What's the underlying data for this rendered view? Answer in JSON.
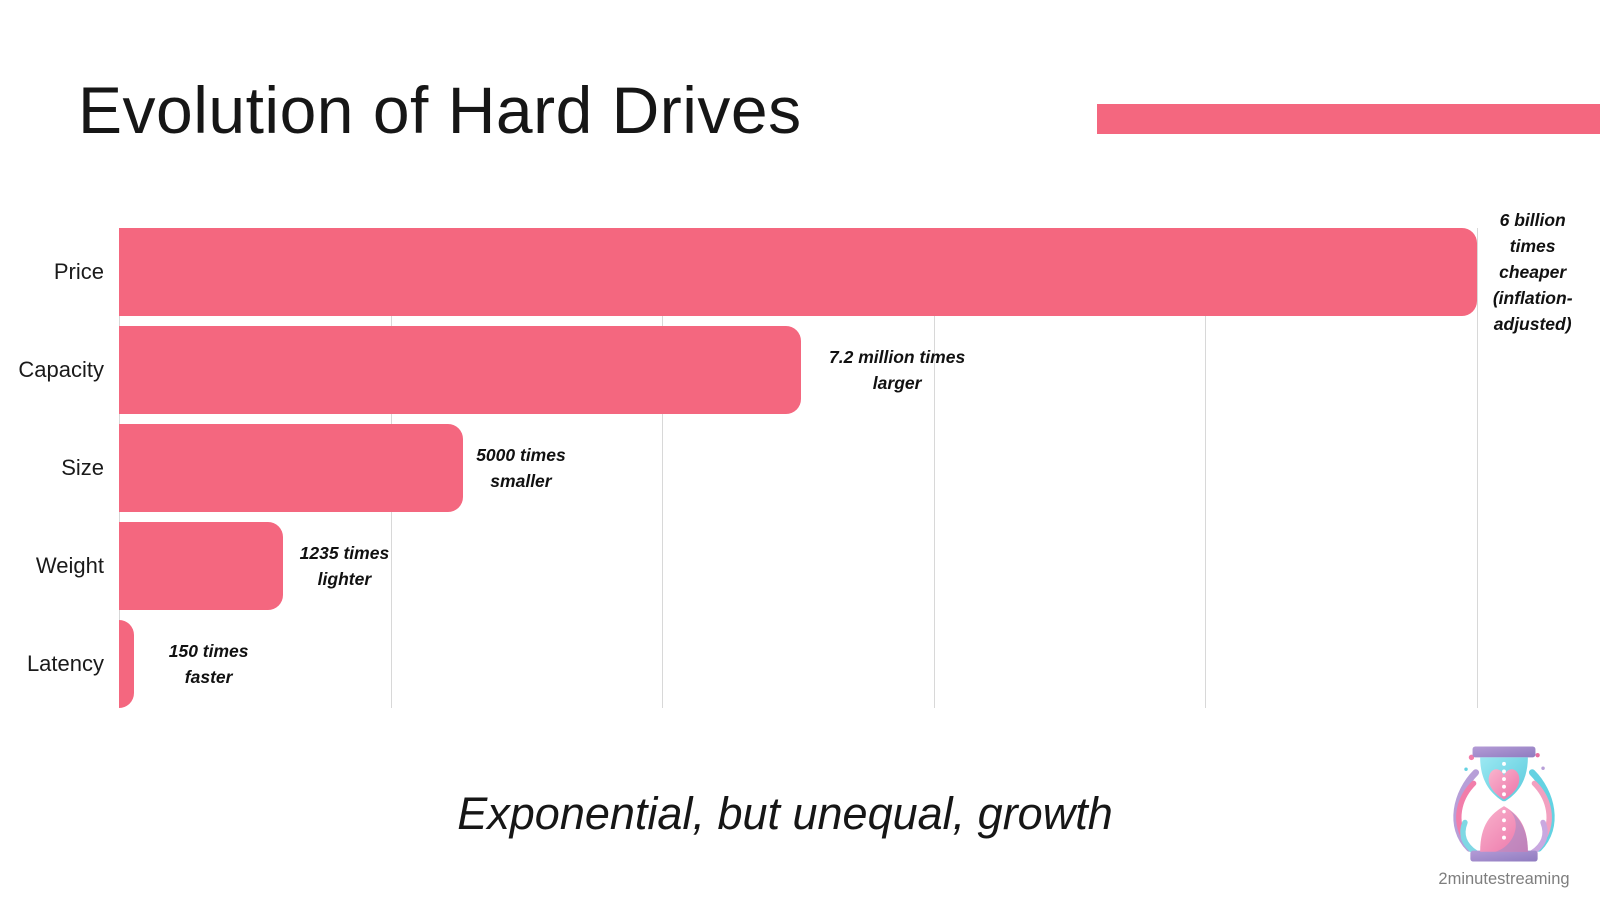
{
  "page": {
    "title": "Evolution of Hard Drives",
    "footer_caption": "Exponential, but unequal, growth",
    "brand_name": "2minutestreaming",
    "accent_color": "#F4677F",
    "background": "#ffffff"
  },
  "chart_data": {
    "type": "bar",
    "orientation": "horizontal",
    "title": "Evolution of Hard Drives",
    "subtitle": "Exponential, but unequal, growth",
    "bar_color": "#F4677F",
    "gridline_color": "#D8D8D8",
    "grid": true,
    "legend": "none",
    "axis": {
      "min_pct": 0,
      "max_pct": 100,
      "gridline_step_pct": 20,
      "tick_labels_visible": false
    },
    "categories": [
      "Price",
      "Capacity",
      "Size",
      "Weight",
      "Latency"
    ],
    "values_pct_of_axis": [
      100,
      50.2,
      25.3,
      12.1,
      1.1
    ],
    "annotations_full": [
      "6 billion times cheaper (inflation-adjusted)",
      "7.2 million times larger",
      "5000 times smaller",
      "1235 times lighter",
      "150 times faster"
    ],
    "improvement_factors": [
      6000000000,
      7200000,
      5000,
      1235,
      150
    ],
    "rows": [
      {
        "category": "Price",
        "value_pct": 100,
        "annotation_lines": [
          "6 billion",
          "times",
          "cheaper",
          "(inflation-",
          "adjusted)"
        ],
        "annotation_center_pct": 104.1
      },
      {
        "category": "Capacity",
        "value_pct": 50.2,
        "annotation_lines": [
          "7.2 million times",
          "larger"
        ],
        "annotation_center_pct": 57.3
      },
      {
        "category": "Size",
        "value_pct": 25.3,
        "annotation_lines": [
          "5000 times",
          "smaller"
        ],
        "annotation_center_pct": 29.6
      },
      {
        "category": "Weight",
        "value_pct": 12.1,
        "annotation_lines": [
          "1235 times",
          "lighter"
        ],
        "annotation_center_pct": 16.6
      },
      {
        "category": "Latency",
        "value_pct": 1.1,
        "annotation_lines": [
          "150 times",
          "faster"
        ],
        "annotation_center_pct": 6.6
      }
    ]
  }
}
